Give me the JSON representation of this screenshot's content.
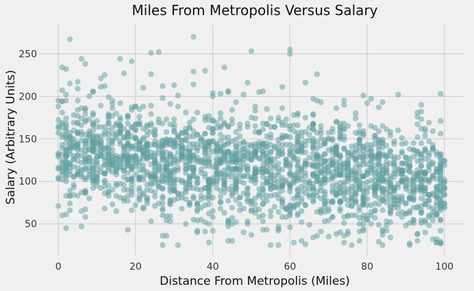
{
  "chart_data": {
    "type": "scatter",
    "title": "Miles From Metropolis Versus Salary",
    "xlabel": "Distance From Metropolis (Miles)",
    "ylabel": "Salary (Arbitrary Units)",
    "xlim": [
      -5,
      105
    ],
    "ylim": [
      13,
      285
    ],
    "xticks": [
      0,
      20,
      40,
      60,
      80,
      100
    ],
    "yticks": [
      50,
      100,
      150,
      200,
      250
    ],
    "grid": true,
    "point_color": "#5f9ea0",
    "point_alpha": 0.5,
    "background": "#f0f0f0",
    "grid_color": "#cbcbcb",
    "series": [
      {
        "values": [
          {
            "x": 3,
            "y": 267
          },
          {
            "x": 35,
            "y": 270
          },
          {
            "x": 60,
            "y": 255
          },
          {
            "x": 60,
            "y": 250
          },
          {
            "x": 50,
            "y": 253
          },
          {
            "x": 24,
            "y": 251
          },
          {
            "x": 26,
            "y": 252
          },
          {
            "x": 6,
            "y": 244
          },
          {
            "x": 7,
            "y": 238
          },
          {
            "x": 16,
            "y": 244
          },
          {
            "x": 19,
            "y": 241
          },
          {
            "x": 1,
            "y": 234
          },
          {
            "x": 43,
            "y": 234
          },
          {
            "x": 35,
            "y": 229
          },
          {
            "x": 38,
            "y": 230
          },
          {
            "x": 17,
            "y": 227
          },
          {
            "x": 67,
            "y": 226
          },
          {
            "x": 12,
            "y": 225
          },
          {
            "x": 24,
            "y": 226
          },
          {
            "x": 5,
            "y": 217
          },
          {
            "x": 30,
            "y": 213
          },
          {
            "x": 58,
            "y": 211
          },
          {
            "x": 49,
            "y": 216
          },
          {
            "x": 64,
            "y": 216
          },
          {
            "x": 35,
            "y": 214
          },
          {
            "x": 11,
            "y": 211
          },
          {
            "x": 22,
            "y": 210
          },
          {
            "x": 88,
            "y": 202
          },
          {
            "x": 99,
            "y": 203
          },
          {
            "x": 74,
            "y": 195
          },
          {
            "x": 80,
            "y": 192
          },
          {
            "x": 84,
            "y": 193
          },
          {
            "x": 66,
            "y": 197
          },
          {
            "x": 9,
            "y": 205
          },
          {
            "x": 44,
            "y": 205
          },
          {
            "x": 53,
            "y": 206
          },
          {
            "x": 40,
            "y": 200
          },
          {
            "x": 2,
            "y": 195
          },
          {
            "x": 20,
            "y": 188
          },
          {
            "x": 29,
            "y": 191
          },
          {
            "x": 33,
            "y": 50
          },
          {
            "x": 39,
            "y": 28
          },
          {
            "x": 44,
            "y": 30
          },
          {
            "x": 63,
            "y": 30
          },
          {
            "x": 76,
            "y": 25
          },
          {
            "x": 91,
            "y": 27
          },
          {
            "x": 93,
            "y": 30
          },
          {
            "x": 98,
            "y": 28
          },
          {
            "x": 2,
            "y": 45
          },
          {
            "x": 36,
            "y": 42
          },
          {
            "x": 57,
            "y": 44
          },
          {
            "x": 70,
            "y": 35
          },
          {
            "x": 85,
            "y": 42
          },
          {
            "x": 95,
            "y": 40
          },
          {
            "x": 48,
            "y": 40
          },
          {
            "x": 72,
            "y": 38
          }
        ]
      }
    ]
  }
}
